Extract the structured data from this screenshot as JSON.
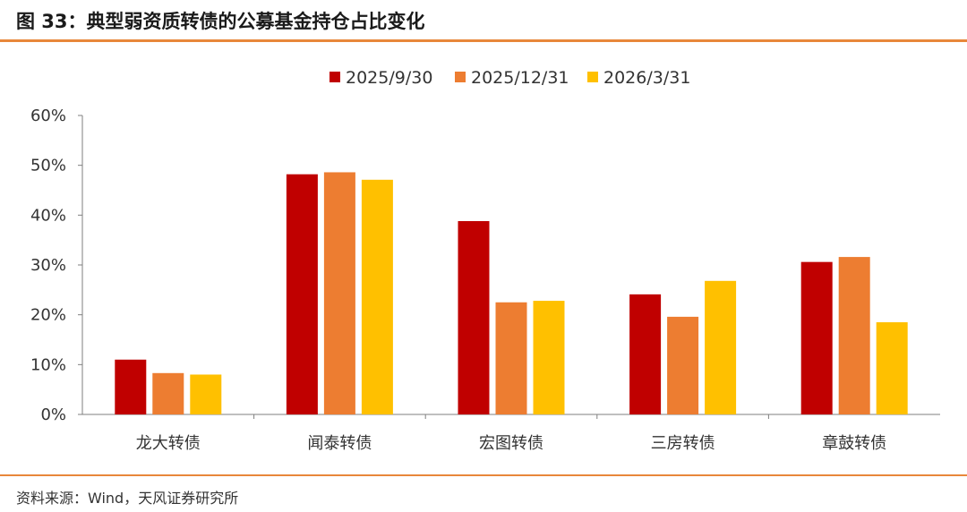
{
  "figure": {
    "title": "图 33：典型弱资质转债的公募基金持仓占比变化",
    "source": "资料来源：Wind，天风证券研究所"
  },
  "colors": {
    "accent_rule": "#E8873A",
    "axis": "#7f7f7f"
  },
  "chart_data": {
    "type": "bar",
    "categories": [
      "龙大转债",
      "闻泰转债",
      "宏图转债",
      "三房转债",
      "章鼓转债"
    ],
    "series": [
      {
        "name": "2025/9/30",
        "color": "#C00000",
        "values": [
          11.0,
          48.2,
          38.8,
          24.1,
          30.6
        ]
      },
      {
        "name": "2025/12/31",
        "color": "#ED7D31",
        "values": [
          8.3,
          48.6,
          22.5,
          19.6,
          31.6
        ]
      },
      {
        "name": "2026/3/31",
        "color": "#FFC000",
        "values": [
          8.0,
          47.1,
          22.8,
          26.8,
          18.5
        ]
      }
    ],
    "yticks": [
      "0%",
      "10%",
      "20%",
      "30%",
      "40%",
      "50%",
      "60%"
    ],
    "ylim": [
      0,
      60
    ],
    "legend_position": "top-center",
    "grid": false
  }
}
